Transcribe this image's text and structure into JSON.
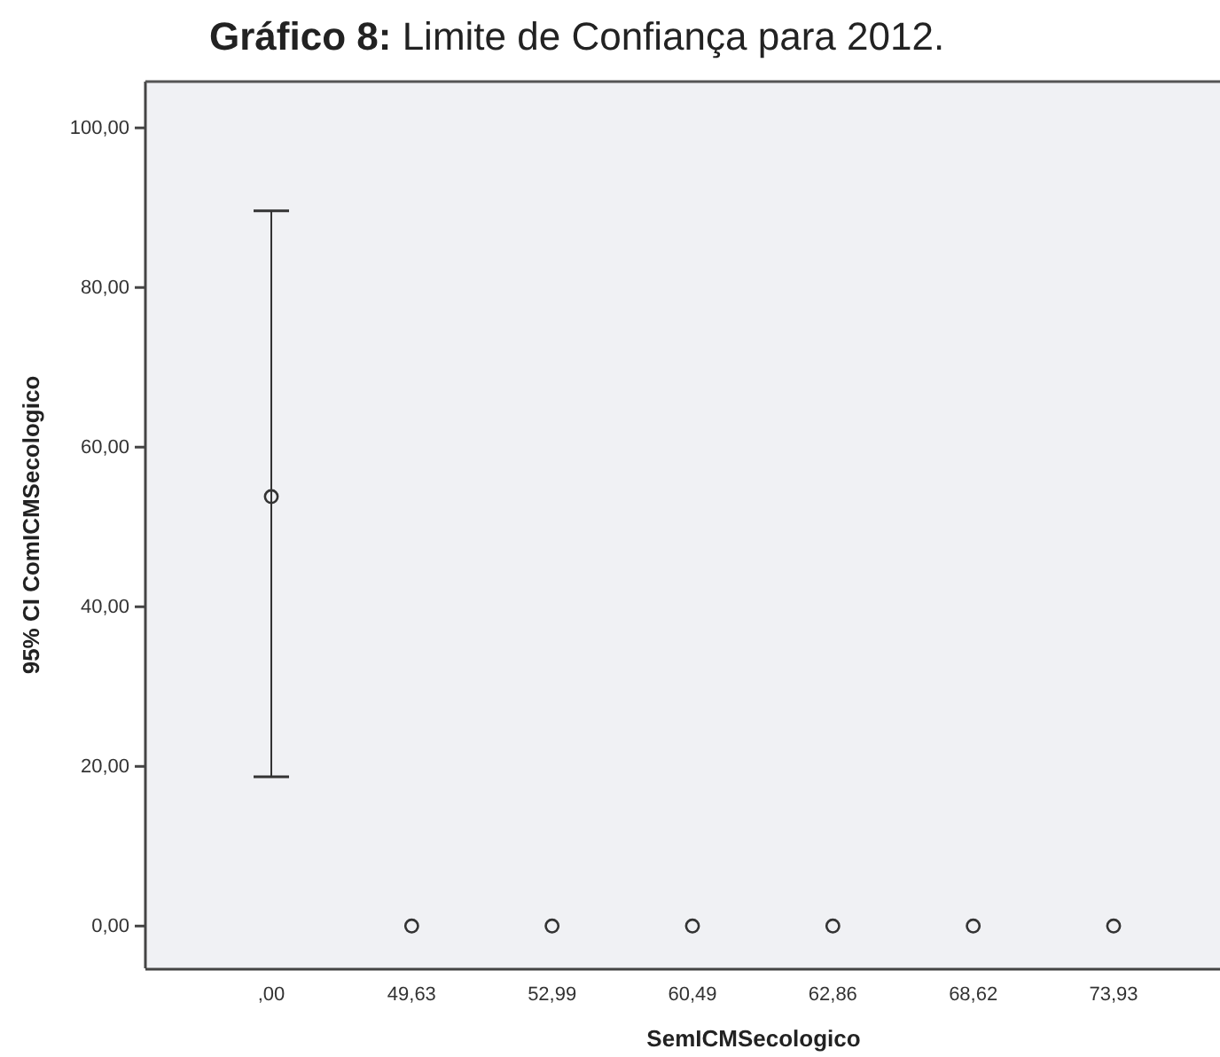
{
  "chart_data": {
    "type": "scatter",
    "title": "Gráfico 8: Limite de Confiança para 2012.",
    "xlabel": "SemICMSecologico",
    "ylabel": "95% CI ComICMSecologico",
    "categories": [
      ",00",
      "49,63",
      "52,99",
      "60,49",
      "62,86",
      "68,62",
      "73,93"
    ],
    "values": [
      53.8,
      0,
      0,
      0,
      0,
      0,
      0
    ],
    "errors": [
      [
        18.7,
        89.6
      ],
      null,
      null,
      null,
      null,
      null,
      null
    ],
    "color": "#333333",
    "marker": "circle",
    "ylim": [
      -5.3,
      105.8
    ],
    "yticks": [
      {
        "value": 0,
        "label": "0,00"
      },
      {
        "value": 20,
        "label": "20,00"
      },
      {
        "value": 40,
        "label": "40,00"
      },
      {
        "value": 60,
        "label": "60,00"
      },
      {
        "value": 80,
        "label": "80,00"
      },
      {
        "value": 100,
        "label": "100,00"
      }
    ]
  }
}
